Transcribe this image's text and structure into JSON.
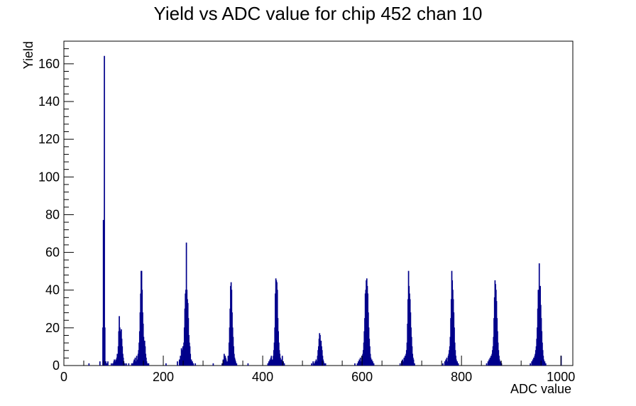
{
  "chart_data": {
    "type": "histogram",
    "title": "Yield vs ADC value for chip 452 chan 10",
    "xlabel": "ADC value",
    "ylabel": "Yield",
    "xlim": [
      0,
      1024
    ],
    "ylim": [
      0,
      172
    ],
    "xticks": [
      0,
      200,
      400,
      600,
      800,
      1000
    ],
    "yticks": [
      0,
      20,
      40,
      60,
      80,
      100,
      120,
      140,
      160
    ],
    "grid": false,
    "legend": "none",
    "line_color": "#00008b",
    "bin_width": 1,
    "bins": [
      [
        50,
        1
      ],
      [
        72,
        2
      ],
      [
        78,
        20
      ],
      [
        79,
        77
      ],
      [
        80,
        76
      ],
      [
        81,
        164
      ],
      [
        82,
        20
      ],
      [
        84,
        2
      ],
      [
        86,
        1
      ],
      [
        88,
        2
      ],
      [
        95,
        1
      ],
      [
        98,
        1
      ],
      [
        100,
        2
      ],
      [
        101,
        3
      ],
      [
        103,
        2
      ],
      [
        104,
        3
      ],
      [
        105,
        1
      ],
      [
        106,
        4
      ],
      [
        107,
        6
      ],
      [
        108,
        4
      ],
      [
        109,
        10
      ],
      [
        110,
        18
      ],
      [
        111,
        26
      ],
      [
        112,
        20
      ],
      [
        113,
        16
      ],
      [
        114,
        18
      ],
      [
        115,
        19
      ],
      [
        116,
        14
      ],
      [
        117,
        10
      ],
      [
        118,
        6
      ],
      [
        119,
        4
      ],
      [
        120,
        2
      ],
      [
        122,
        1
      ],
      [
        125,
        1
      ],
      [
        130,
        1
      ],
      [
        136,
        1
      ],
      [
        138,
        1
      ],
      [
        140,
        2
      ],
      [
        141,
        3
      ],
      [
        143,
        4
      ],
      [
        145,
        2
      ],
      [
        146,
        5
      ],
      [
        148,
        3
      ],
      [
        149,
        6
      ],
      [
        150,
        8
      ],
      [
        151,
        12
      ],
      [
        152,
        18
      ],
      [
        153,
        28
      ],
      [
        154,
        38
      ],
      [
        155,
        50
      ],
      [
        156,
        50
      ],
      [
        157,
        40
      ],
      [
        158,
        28
      ],
      [
        159,
        22
      ],
      [
        160,
        15
      ],
      [
        161,
        12
      ],
      [
        162,
        13
      ],
      [
        163,
        10
      ],
      [
        164,
        6
      ],
      [
        165,
        4
      ],
      [
        166,
        2
      ],
      [
        168,
        1
      ],
      [
        170,
        1
      ],
      [
        205,
        1
      ],
      [
        228,
        2
      ],
      [
        232,
        3
      ],
      [
        234,
        5
      ],
      [
        236,
        9
      ],
      [
        238,
        8
      ],
      [
        239,
        10
      ],
      [
        240,
        6
      ],
      [
        241,
        12
      ],
      [
        242,
        20
      ],
      [
        243,
        30
      ],
      [
        244,
        38
      ],
      [
        245,
        40
      ],
      [
        246,
        65
      ],
      [
        247,
        40
      ],
      [
        248,
        35
      ],
      [
        249,
        33
      ],
      [
        250,
        25
      ],
      [
        251,
        16
      ],
      [
        252,
        12
      ],
      [
        253,
        10
      ],
      [
        254,
        6
      ],
      [
        256,
        3
      ],
      [
        258,
        2
      ],
      [
        260,
        1
      ],
      [
        264,
        1
      ],
      [
        300,
        1
      ],
      [
        318,
        1
      ],
      [
        320,
        3
      ],
      [
        322,
        6
      ],
      [
        324,
        5
      ],
      [
        325,
        4
      ],
      [
        326,
        3
      ],
      [
        328,
        2
      ],
      [
        330,
        5
      ],
      [
        332,
        12
      ],
      [
        333,
        20
      ],
      [
        334,
        30
      ],
      [
        335,
        42
      ],
      [
        336,
        44
      ],
      [
        337,
        40
      ],
      [
        338,
        28
      ],
      [
        339,
        20
      ],
      [
        340,
        15
      ],
      [
        341,
        10
      ],
      [
        342,
        6
      ],
      [
        343,
        4
      ],
      [
        344,
        3
      ],
      [
        345,
        2
      ],
      [
        347,
        1
      ],
      [
        370,
        1
      ],
      [
        410,
        1
      ],
      [
        412,
        2
      ],
      [
        414,
        3
      ],
      [
        416,
        4
      ],
      [
        417,
        5
      ],
      [
        419,
        3
      ],
      [
        421,
        5
      ],
      [
        422,
        8
      ],
      [
        423,
        12
      ],
      [
        424,
        20
      ],
      [
        425,
        38
      ],
      [
        426,
        46
      ],
      [
        427,
        45
      ],
      [
        428,
        44
      ],
      [
        429,
        40
      ],
      [
        430,
        25
      ],
      [
        431,
        18
      ],
      [
        432,
        12
      ],
      [
        433,
        8
      ],
      [
        434,
        6
      ],
      [
        435,
        4
      ],
      [
        437,
        3
      ],
      [
        439,
        5
      ],
      [
        441,
        2
      ],
      [
        443,
        1
      ],
      [
        498,
        1
      ],
      [
        501,
        2
      ],
      [
        503,
        1
      ],
      [
        505,
        2
      ],
      [
        507,
        3
      ],
      [
        509,
        2
      ],
      [
        510,
        5
      ],
      [
        511,
        8
      ],
      [
        512,
        10
      ],
      [
        513,
        14
      ],
      [
        514,
        17
      ],
      [
        515,
        16
      ],
      [
        516,
        12
      ],
      [
        517,
        13
      ],
      [
        518,
        10
      ],
      [
        519,
        8
      ],
      [
        520,
        5
      ],
      [
        521,
        3
      ],
      [
        522,
        2
      ],
      [
        524,
        1
      ],
      [
        526,
        1
      ],
      [
        585,
        1
      ],
      [
        590,
        1
      ],
      [
        592,
        2
      ],
      [
        594,
        3
      ],
      [
        596,
        4
      ],
      [
        598,
        2
      ],
      [
        599,
        5
      ],
      [
        601,
        6
      ],
      [
        602,
        8
      ],
      [
        603,
        12
      ],
      [
        604,
        18
      ],
      [
        605,
        25
      ],
      [
        606,
        38
      ],
      [
        607,
        40
      ],
      [
        608,
        45
      ],
      [
        609,
        46
      ],
      [
        610,
        42
      ],
      [
        611,
        38
      ],
      [
        612,
        28
      ],
      [
        613,
        20
      ],
      [
        614,
        14
      ],
      [
        615,
        10
      ],
      [
        616,
        6
      ],
      [
        617,
        4
      ],
      [
        619,
        3
      ],
      [
        621,
        2
      ],
      [
        623,
        1
      ],
      [
        676,
        1
      ],
      [
        679,
        2
      ],
      [
        681,
        3
      ],
      [
        683,
        2
      ],
      [
        684,
        4
      ],
      [
        686,
        5
      ],
      [
        687,
        3
      ],
      [
        688,
        6
      ],
      [
        689,
        8
      ],
      [
        690,
        12
      ],
      [
        691,
        22
      ],
      [
        692,
        35
      ],
      [
        693,
        50
      ],
      [
        694,
        42
      ],
      [
        695,
        38
      ],
      [
        696,
        35
      ],
      [
        697,
        28
      ],
      [
        698,
        20
      ],
      [
        699,
        15
      ],
      [
        700,
        10
      ],
      [
        701,
        6
      ],
      [
        702,
        4
      ],
      [
        703,
        3
      ],
      [
        705,
        1
      ],
      [
        762,
        1
      ],
      [
        766,
        2
      ],
      [
        768,
        3
      ],
      [
        770,
        4
      ],
      [
        772,
        2
      ],
      [
        773,
        5
      ],
      [
        774,
        6
      ],
      [
        775,
        8
      ],
      [
        776,
        10
      ],
      [
        777,
        15
      ],
      [
        778,
        25
      ],
      [
        779,
        35
      ],
      [
        780,
        50
      ],
      [
        781,
        45
      ],
      [
        782,
        40
      ],
      [
        783,
        35
      ],
      [
        784,
        28
      ],
      [
        785,
        20
      ],
      [
        786,
        12
      ],
      [
        787,
        8
      ],
      [
        788,
        5
      ],
      [
        789,
        3
      ],
      [
        791,
        2
      ],
      [
        793,
        1
      ],
      [
        850,
        1
      ],
      [
        853,
        2
      ],
      [
        855,
        3
      ],
      [
        857,
        4
      ],
      [
        859,
        5
      ],
      [
        860,
        3
      ],
      [
        861,
        6
      ],
      [
        862,
        8
      ],
      [
        863,
        10
      ],
      [
        864,
        15
      ],
      [
        865,
        25
      ],
      [
        866,
        36
      ],
      [
        867,
        45
      ],
      [
        868,
        43
      ],
      [
        869,
        40
      ],
      [
        870,
        34
      ],
      [
        871,
        25
      ],
      [
        872,
        18
      ],
      [
        873,
        12
      ],
      [
        874,
        8
      ],
      [
        875,
        5
      ],
      [
        876,
        3
      ],
      [
        878,
        2
      ],
      [
        880,
        1
      ],
      [
        938,
        1
      ],
      [
        941,
        2
      ],
      [
        943,
        3
      ],
      [
        945,
        4
      ],
      [
        947,
        5
      ],
      [
        948,
        6
      ],
      [
        949,
        8
      ],
      [
        950,
        10
      ],
      [
        951,
        14
      ],
      [
        952,
        20
      ],
      [
        953,
        30
      ],
      [
        954,
        40
      ],
      [
        955,
        35
      ],
      [
        956,
        54
      ],
      [
        957,
        38
      ],
      [
        958,
        42
      ],
      [
        959,
        32
      ],
      [
        960,
        25
      ],
      [
        961,
        18
      ],
      [
        962,
        12
      ],
      [
        963,
        8
      ],
      [
        964,
        5
      ],
      [
        965,
        3
      ],
      [
        967,
        2
      ],
      [
        969,
        1
      ],
      [
        1000,
        5
      ]
    ]
  }
}
